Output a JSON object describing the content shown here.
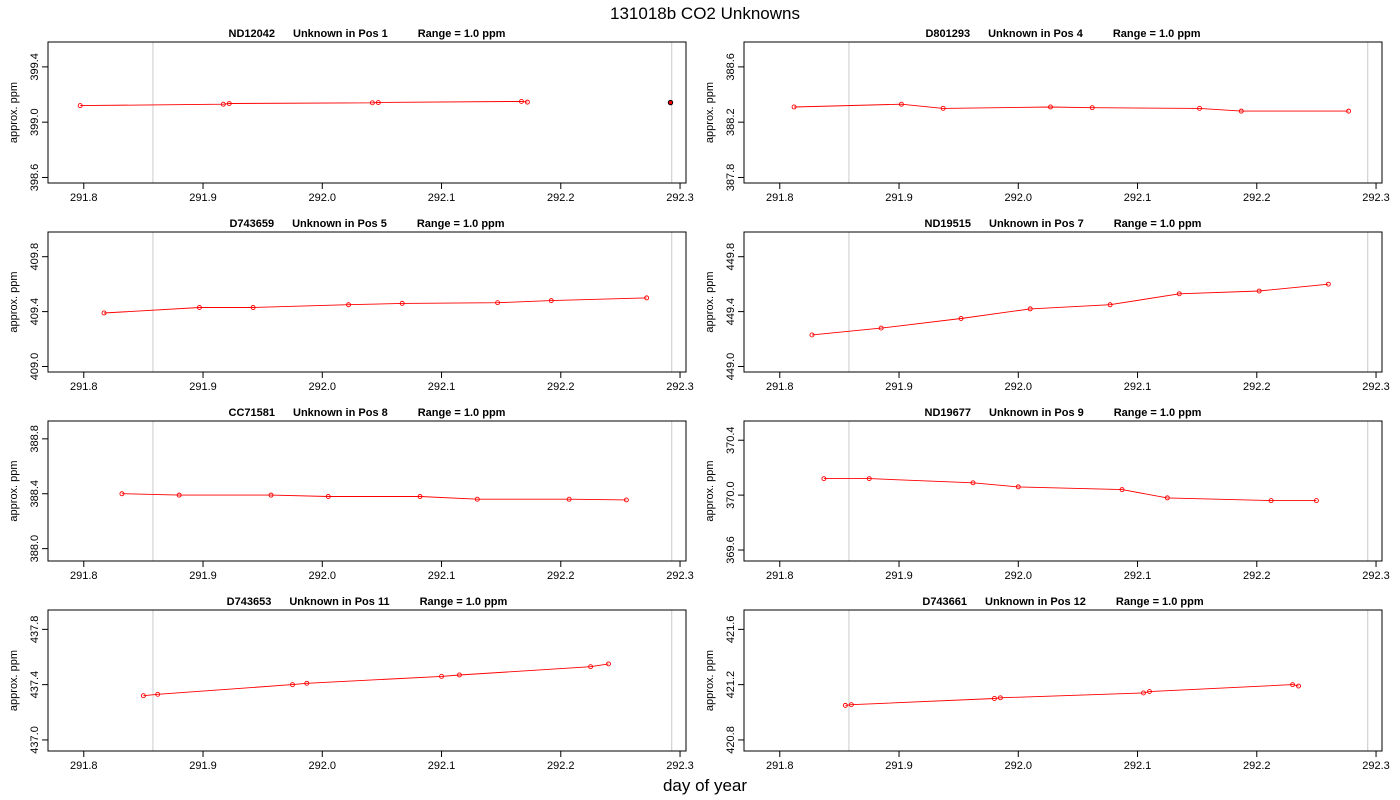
{
  "figure": {
    "title": "131018b  CO2 Unknowns",
    "xlabel": "day of year"
  },
  "colors": {
    "series": "#ff0000",
    "axis": "#000000",
    "marker_line": "#d3d3d3",
    "special_point": "#000000"
  },
  "chart_data": [
    {
      "type": "line",
      "title_id": "ND12042",
      "title_pos": "Unknown in Pos 1",
      "title_range": "Range = 1.0 ppm",
      "ylabel": "approx. ppm",
      "xlim": [
        291.77,
        292.305
      ],
      "ylim": [
        398.56,
        399.58
      ],
      "xticks": [
        "291.8",
        "291.9",
        "292.0",
        "292.1",
        "292.2",
        "292.3"
      ],
      "yticks": [
        "398.6",
        "399.0",
        "399.4"
      ],
      "vlines": [
        291.858,
        292.293
      ],
      "x": [
        291.797,
        291.917,
        291.922,
        292.042,
        292.047,
        292.167,
        292.172
      ],
      "y": [
        399.12,
        399.13,
        399.135,
        399.14,
        399.142,
        399.15,
        399.145
      ],
      "extra_points": [
        {
          "x": 292.292,
          "y": 399.142
        }
      ]
    },
    {
      "type": "line",
      "title_id": "D801293",
      "title_pos": "Unknown in Pos 4",
      "title_range": "Range = 1.0 ppm",
      "ylabel": "approx. ppm",
      "xlim": [
        291.77,
        292.305
      ],
      "ylim": [
        387.76,
        388.78
      ],
      "xticks": [
        "291.8",
        "291.9",
        "292.0",
        "292.1",
        "292.2",
        "292.3"
      ],
      "yticks": [
        "387.8",
        "388.2",
        "388.6"
      ],
      "vlines": [
        291.858,
        292.293
      ],
      "x": [
        291.812,
        291.902,
        291.937,
        292.027,
        292.062,
        292.152,
        292.187,
        292.277
      ],
      "y": [
        388.31,
        388.33,
        388.3,
        388.31,
        388.305,
        388.3,
        388.28,
        388.28
      ],
      "extra_points": []
    },
    {
      "type": "line",
      "title_id": "D743659",
      "title_pos": "Unknown in Pos 5",
      "title_range": "Range = 1.0 ppm",
      "ylabel": "approx. ppm",
      "xlim": [
        291.77,
        292.305
      ],
      "ylim": [
        408.96,
        409.98
      ],
      "xticks": [
        "291.8",
        "291.9",
        "292.0",
        "292.1",
        "292.2",
        "292.3"
      ],
      "yticks": [
        "409.0",
        "409.4",
        "409.8"
      ],
      "vlines": [
        291.858,
        292.293
      ],
      "x": [
        291.817,
        291.897,
        291.942,
        292.022,
        292.067,
        292.147,
        292.192,
        292.272
      ],
      "y": [
        409.39,
        409.43,
        409.43,
        409.45,
        409.46,
        409.465,
        409.48,
        409.5
      ],
      "extra_points": []
    },
    {
      "type": "line",
      "title_id": "ND19515",
      "title_pos": "Unknown in Pos 7",
      "title_range": "Range = 1.0 ppm",
      "ylabel": "approx. ppm",
      "xlim": [
        291.77,
        292.305
      ],
      "ylim": [
        448.96,
        449.98
      ],
      "xticks": [
        "291.8",
        "291.9",
        "292.0",
        "292.1",
        "292.2",
        "292.3"
      ],
      "yticks": [
        "449.0",
        "449.4",
        "449.8"
      ],
      "vlines": [
        291.858,
        292.293
      ],
      "x": [
        291.827,
        291.885,
        291.952,
        292.01,
        292.077,
        292.135,
        292.202,
        292.26
      ],
      "y": [
        449.23,
        449.28,
        449.35,
        449.42,
        449.45,
        449.53,
        449.55,
        449.6
      ],
      "extra_points": []
    },
    {
      "type": "line",
      "title_id": "CC71581",
      "title_pos": "Unknown in Pos 8",
      "title_range": "Range = 1.0 ppm",
      "ylabel": "approx. ppm",
      "xlim": [
        291.77,
        292.305
      ],
      "ylim": [
        387.91,
        388.93
      ],
      "xticks": [
        "291.8",
        "291.9",
        "292.0",
        "292.1",
        "292.2",
        "292.3"
      ],
      "yticks": [
        "388.0",
        "388.4",
        "388.8"
      ],
      "vlines": [
        291.858,
        292.293
      ],
      "x": [
        291.832,
        291.88,
        291.957,
        292.005,
        292.082,
        292.13,
        292.207,
        292.255
      ],
      "y": [
        388.4,
        388.39,
        388.39,
        388.38,
        388.38,
        388.36,
        388.36,
        388.355
      ],
      "extra_points": []
    },
    {
      "type": "line",
      "title_id": "ND19677",
      "title_pos": "Unknown in Pos 9",
      "title_range": "Range = 1.0 ppm",
      "ylabel": "approx. ppm",
      "xlim": [
        291.77,
        292.305
      ],
      "ylim": [
        369.52,
        370.54
      ],
      "xticks": [
        "291.8",
        "291.9",
        "292.0",
        "292.1",
        "292.2",
        "292.3"
      ],
      "yticks": [
        "369.6",
        "370.0",
        "370.4"
      ],
      "vlines": [
        291.858,
        292.293
      ],
      "x": [
        291.837,
        291.875,
        291.962,
        292.0,
        292.087,
        292.125,
        292.212,
        292.25
      ],
      "y": [
        370.12,
        370.12,
        370.09,
        370.06,
        370.04,
        369.98,
        369.96,
        369.96
      ],
      "extra_points": []
    },
    {
      "type": "line",
      "title_id": "D743653",
      "title_pos": "Unknown in Pos 11",
      "title_range": "Range = 1.0 ppm",
      "ylabel": "approx. ppm",
      "xlim": [
        291.77,
        292.305
      ],
      "ylim": [
        436.92,
        437.94
      ],
      "xticks": [
        "291.8",
        "291.9",
        "292.0",
        "292.1",
        "292.2",
        "292.3"
      ],
      "yticks": [
        "437.0",
        "437.4",
        "437.8"
      ],
      "vlines": [
        291.858,
        292.293
      ],
      "x": [
        291.85,
        291.862,
        291.975,
        291.987,
        292.1,
        292.115,
        292.225,
        292.24
      ],
      "y": [
        437.32,
        437.33,
        437.4,
        437.41,
        437.46,
        437.47,
        437.53,
        437.55
      ],
      "extra_points": []
    },
    {
      "type": "line",
      "title_id": "D743661",
      "title_pos": "Unknown in Pos 12",
      "title_range": "Range = 1.0 ppm",
      "ylabel": "approx. ppm",
      "xlim": [
        291.77,
        292.305
      ],
      "ylim": [
        420.72,
        421.74
      ],
      "xticks": [
        "291.8",
        "291.9",
        "292.0",
        "292.1",
        "292.2",
        "292.3"
      ],
      "yticks": [
        "420.8",
        "421.2",
        "421.6"
      ],
      "vlines": [
        291.858,
        292.293
      ],
      "x": [
        291.855,
        291.86,
        291.98,
        291.985,
        292.105,
        292.11,
        292.23,
        292.235
      ],
      "y": [
        421.05,
        421.055,
        421.1,
        421.105,
        421.14,
        421.15,
        421.2,
        421.19
      ],
      "extra_points": []
    }
  ]
}
